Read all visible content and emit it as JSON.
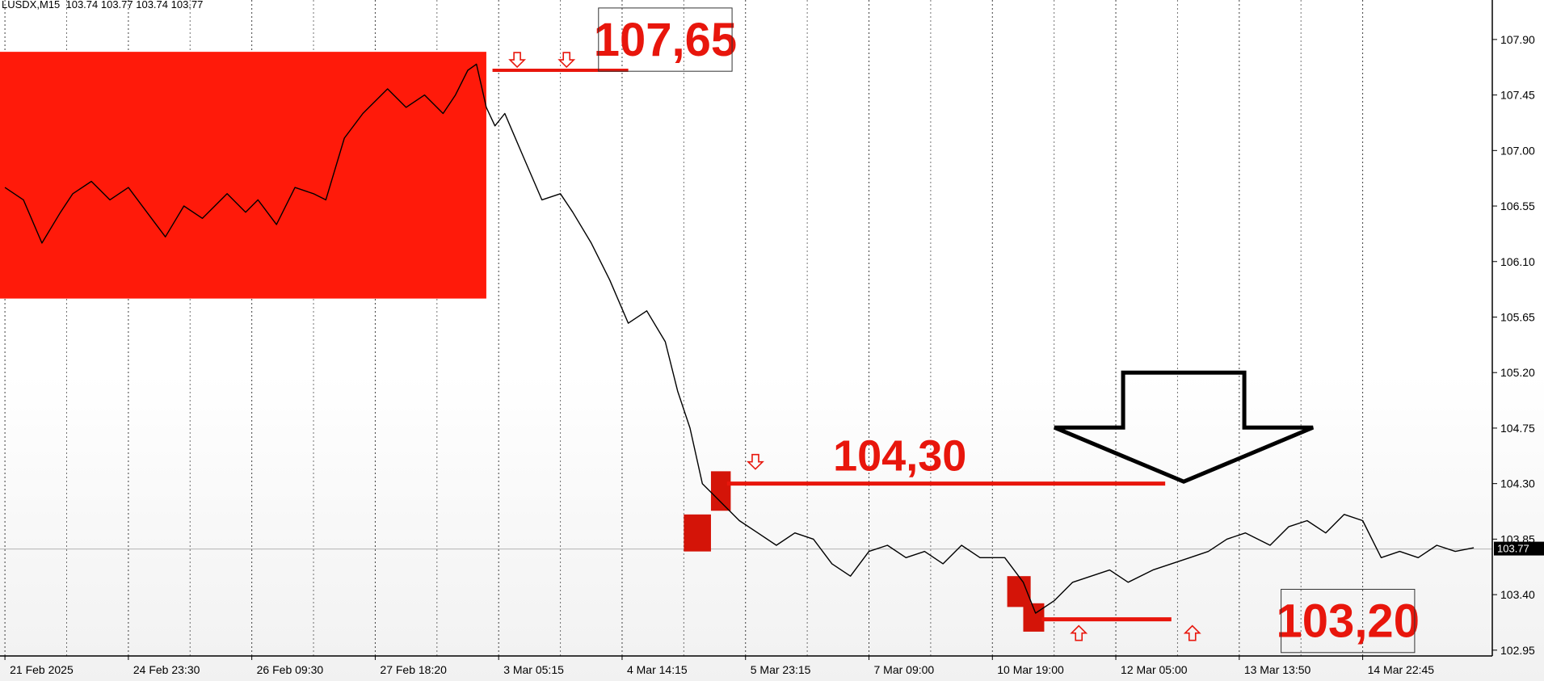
{
  "header": {
    "symbol": "LUSDX,M15",
    "ohlc": "103.74 103.77 103.74 103.77"
  },
  "colors": {
    "zone": "#ff1a0a",
    "level": "#e8160c",
    "price_line": "#000000",
    "grid": "#000000",
    "current_price_bg": "#000000"
  },
  "annotations": {
    "label_top": "107,65",
    "label_mid": "104,30",
    "label_bottom": "103,20"
  },
  "current_price": "103.77",
  "chart_data": {
    "type": "line",
    "symbol": "LUSDX",
    "timeframe": "M15",
    "y_ticks": [
      "107.90",
      "107.45",
      "107.00",
      "106.55",
      "106.10",
      "105.65",
      "105.20",
      "104.75",
      "104.30",
      "103.85",
      "103.40",
      "102.95"
    ],
    "ylim": [
      102.7,
      108.22
    ],
    "x_ticks": [
      "21 Feb 2025",
      "24 Feb 23:30",
      "26 Feb 09:30",
      "27 Feb 18:20",
      "3 Mar 05:15",
      "4 Mar 14:15",
      "5 Mar 23:15",
      "7 Mar 09:00",
      "10 Mar 19:00",
      "12 Mar 05:00",
      "13 Mar 13:50",
      "14 Mar 22:45"
    ],
    "xlim": [
      -0.04,
      12.05
    ],
    "series": [
      {
        "x": [
          0.0,
          0.15,
          0.3,
          0.45,
          0.55,
          0.7,
          0.85,
          1.0,
          1.15,
          1.3,
          1.45,
          1.6,
          1.8,
          1.95,
          2.05,
          2.2,
          2.35,
          2.5,
          2.6,
          2.75,
          2.9,
          3.0,
          3.1,
          3.25,
          3.4,
          3.55,
          3.65,
          3.75,
          3.82,
          3.9,
          3.97,
          4.05,
          4.2,
          4.35,
          4.5,
          4.6,
          4.75,
          4.9,
          5.05,
          5.2,
          5.35,
          5.45,
          5.55,
          5.65,
          5.8,
          5.95,
          6.1,
          6.25,
          6.4,
          6.55,
          6.7,
          6.85,
          7.0,
          7.15,
          7.3,
          7.45,
          7.6,
          7.75,
          7.9,
          8.1,
          8.25,
          8.35,
          8.5,
          8.65,
          8.8,
          8.95,
          9.1,
          9.3,
          9.45,
          9.6,
          9.75,
          9.9,
          10.05,
          10.25,
          10.4,
          10.55,
          10.7,
          10.85,
          11.0,
          11.15,
          11.3,
          11.45,
          11.6,
          11.75,
          11.9
        ],
        "y": [
          106.7,
          106.6,
          106.25,
          106.5,
          106.65,
          106.75,
          106.6,
          106.7,
          106.5,
          106.3,
          106.55,
          106.45,
          106.65,
          106.5,
          106.6,
          106.4,
          106.7,
          106.65,
          106.6,
          107.1,
          107.3,
          107.4,
          107.5,
          107.35,
          107.45,
          107.3,
          107.45,
          107.65,
          107.7,
          107.35,
          107.2,
          107.3,
          106.95,
          106.6,
          106.65,
          106.5,
          106.25,
          105.95,
          105.6,
          105.7,
          105.45,
          105.05,
          104.75,
          104.3,
          104.15,
          104.0,
          103.9,
          103.8,
          103.9,
          103.85,
          103.65,
          103.55,
          103.75,
          103.8,
          103.7,
          103.75,
          103.65,
          103.8,
          103.7,
          103.7,
          103.5,
          103.25,
          103.35,
          103.5,
          103.55,
          103.6,
          103.5,
          103.6,
          103.65,
          103.7,
          103.75,
          103.85,
          103.9,
          103.8,
          103.95,
          104.0,
          103.9,
          104.05,
          104.0,
          103.7,
          103.75,
          103.7,
          103.8,
          103.75,
          103.78
        ]
      }
    ],
    "levels": [
      107.65,
      104.3,
      103.2
    ],
    "grid": true,
    "legend": "none"
  }
}
